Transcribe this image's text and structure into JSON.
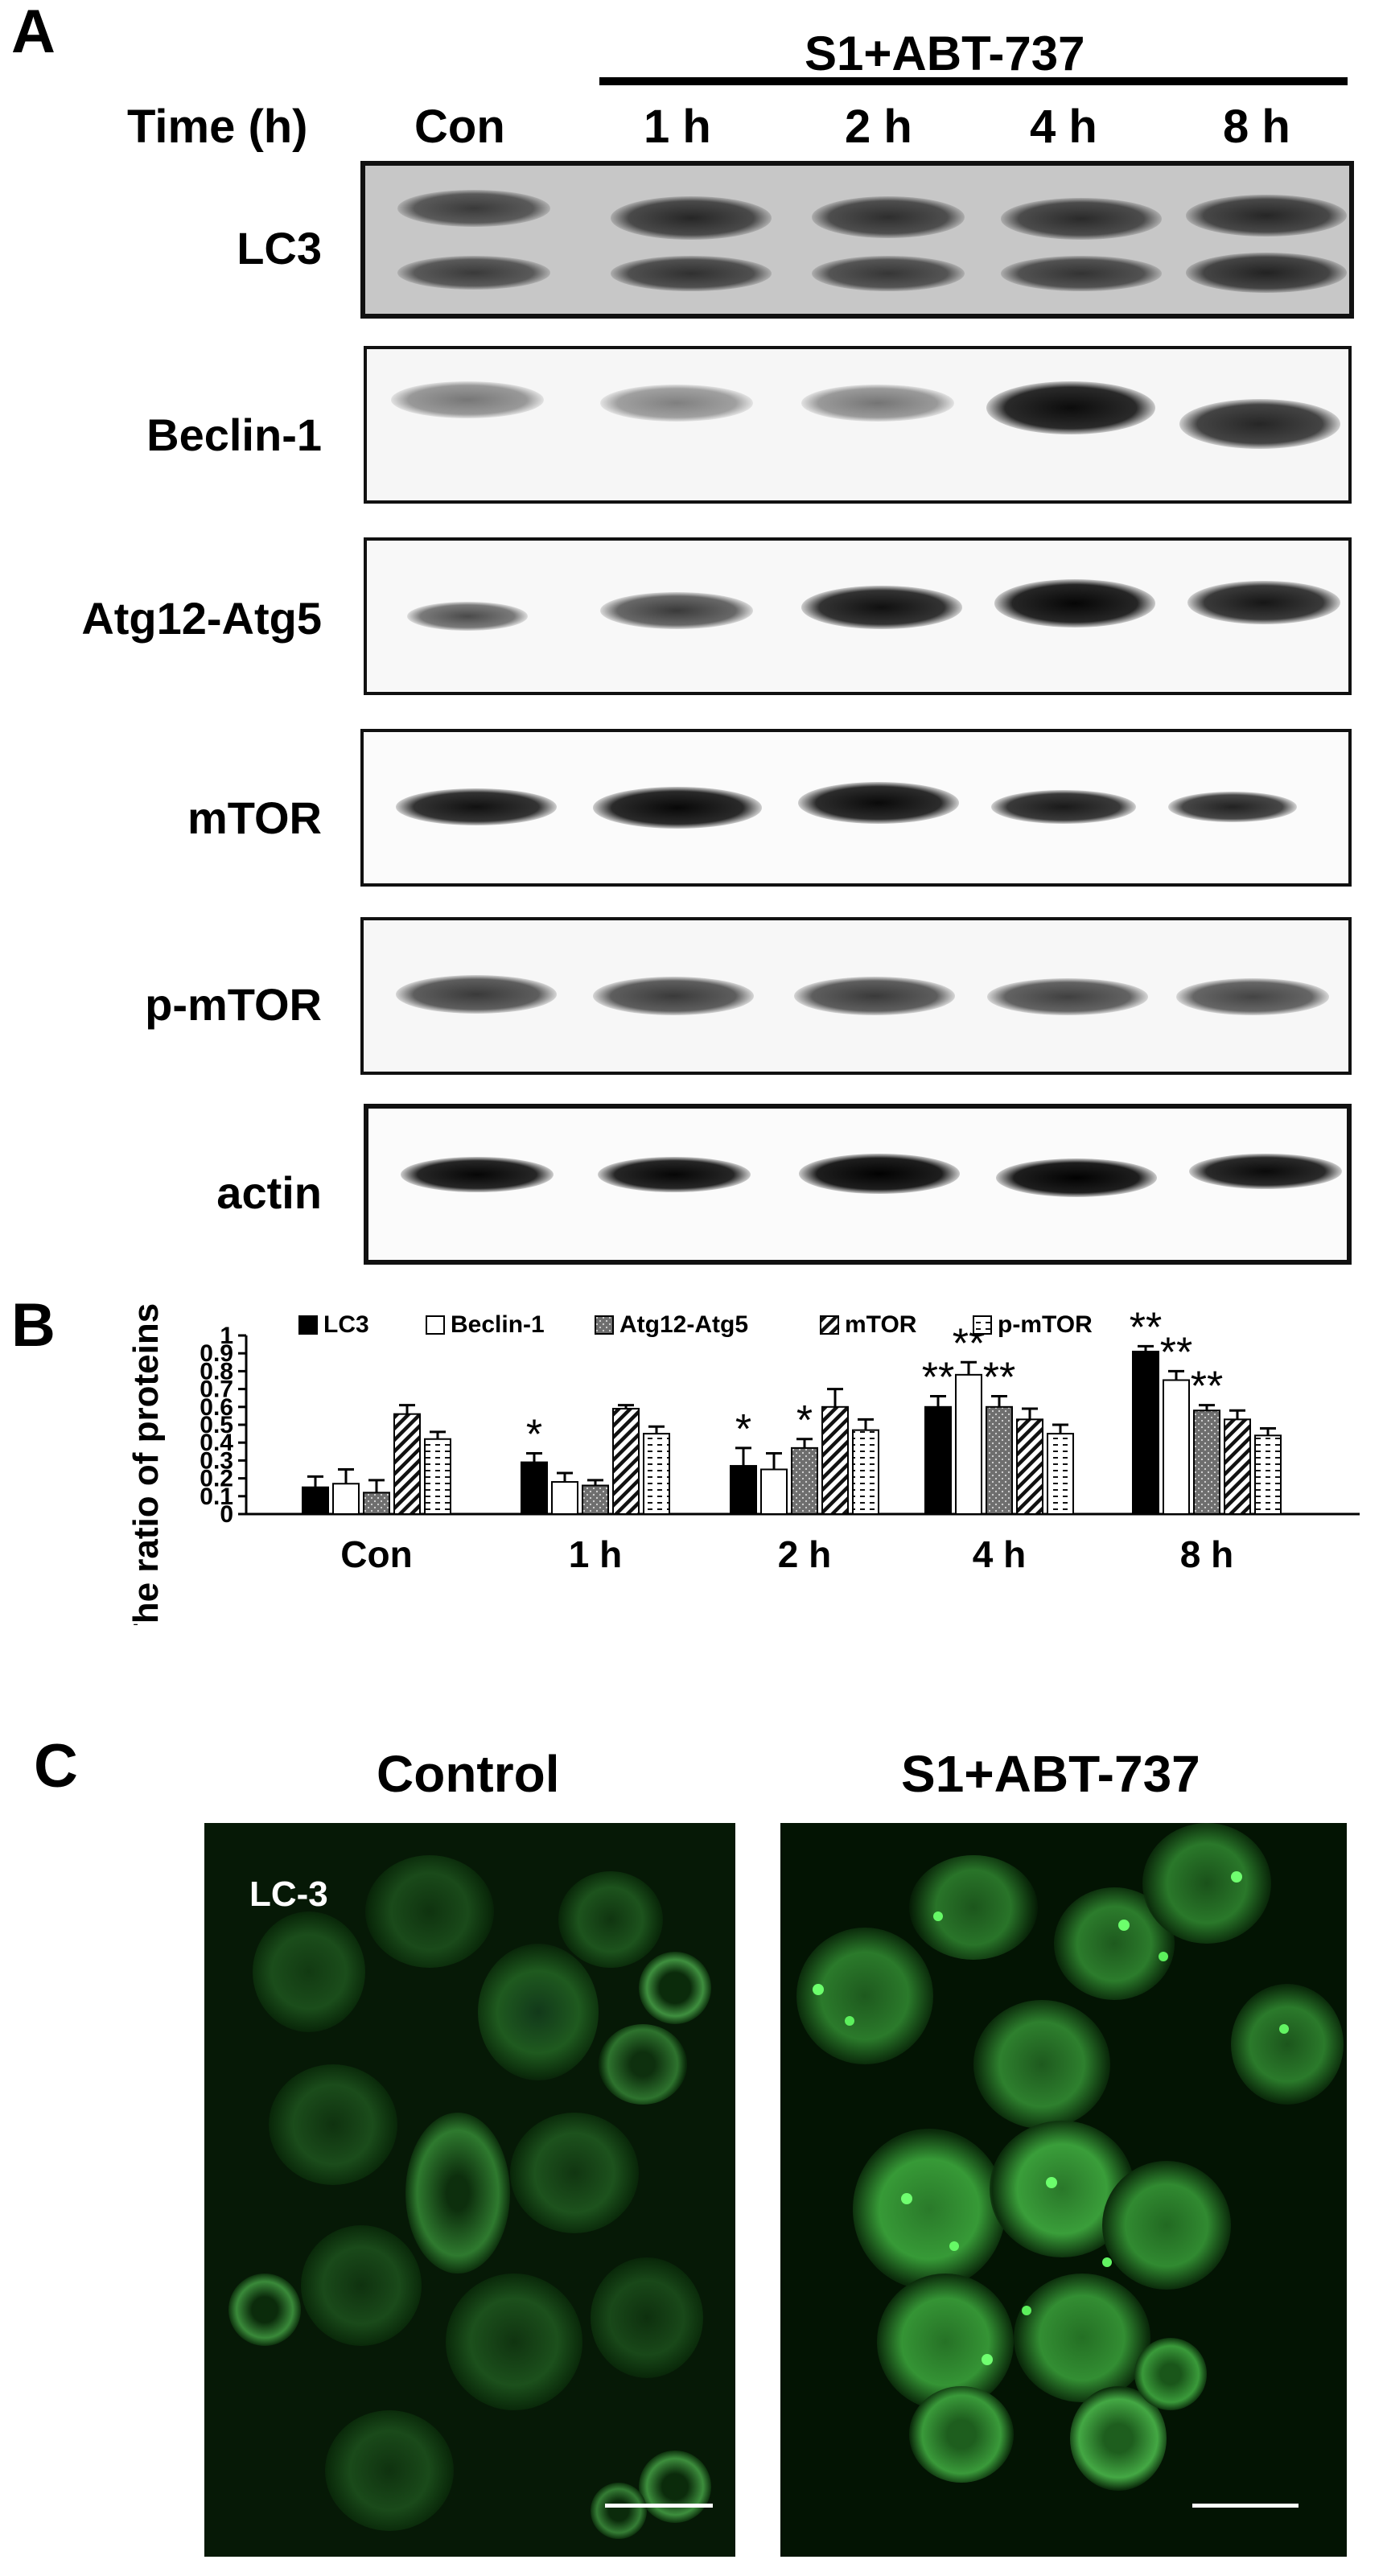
{
  "panel_a": {
    "letter": "A",
    "treatment_label": "S1+ABT-737",
    "time_label": "Time (h)",
    "lanes": [
      "Con",
      "1 h",
      "2 h",
      "4 h",
      "8 h"
    ],
    "blots": [
      "LC3",
      "Beclin-1",
      "Atg12-Atg5",
      "mTOR",
      "p-mTOR",
      "actin"
    ]
  },
  "panel_b": {
    "letter": "B"
  },
  "panel_c": {
    "letter": "C",
    "left_title": "Control",
    "right_title": "S1+ABT-737",
    "image_label": "LC-3"
  },
  "chart_data": {
    "type": "bar",
    "categories": [
      "Con",
      "1 h",
      "2 h",
      "4 h",
      "8 h"
    ],
    "ylabel": "The ratio of proteins/actin",
    "xlabel": "",
    "ylim": [
      0,
      1
    ],
    "yticks": [
      "0",
      "0.1",
      "0.2",
      "0.3",
      "0.4",
      "0.5",
      "0.6",
      "0.7",
      "0.8",
      "0.9",
      "1"
    ],
    "legend_position": "top",
    "series": [
      {
        "name": "LC3",
        "values": [
          0.15,
          0.29,
          0.27,
          0.6,
          0.91
        ],
        "errors": [
          0.06,
          0.05,
          0.1,
          0.06,
          0.03
        ],
        "sig": [
          "",
          "*",
          "*",
          "**",
          "**"
        ],
        "pattern": "solid"
      },
      {
        "name": "Beclin-1",
        "values": [
          0.17,
          0.18,
          0.25,
          0.78,
          0.75
        ],
        "errors": [
          0.08,
          0.05,
          0.09,
          0.07,
          0.05
        ],
        "sig": [
          "",
          "",
          "",
          "**",
          "**"
        ],
        "pattern": "white"
      },
      {
        "name": "Atg12-Atg5",
        "values": [
          0.12,
          0.16,
          0.37,
          0.6,
          0.58
        ],
        "errors": [
          0.07,
          0.03,
          0.05,
          0.06,
          0.03
        ],
        "sig": [
          "",
          "",
          "*",
          "**",
          "**"
        ],
        "pattern": "dots"
      },
      {
        "name": "mTOR",
        "values": [
          0.56,
          0.59,
          0.6,
          0.53,
          0.53
        ],
        "errors": [
          0.05,
          0.02,
          0.1,
          0.06,
          0.05
        ],
        "sig": [
          "",
          "",
          "",
          "",
          ""
        ],
        "pattern": "hatch"
      },
      {
        "name": "p-mTOR",
        "values": [
          0.42,
          0.45,
          0.47,
          0.45,
          0.44
        ],
        "errors": [
          0.04,
          0.04,
          0.06,
          0.05,
          0.04
        ],
        "sig": [
          "",
          "",
          "",
          "",
          ""
        ],
        "pattern": "dashes"
      }
    ]
  }
}
